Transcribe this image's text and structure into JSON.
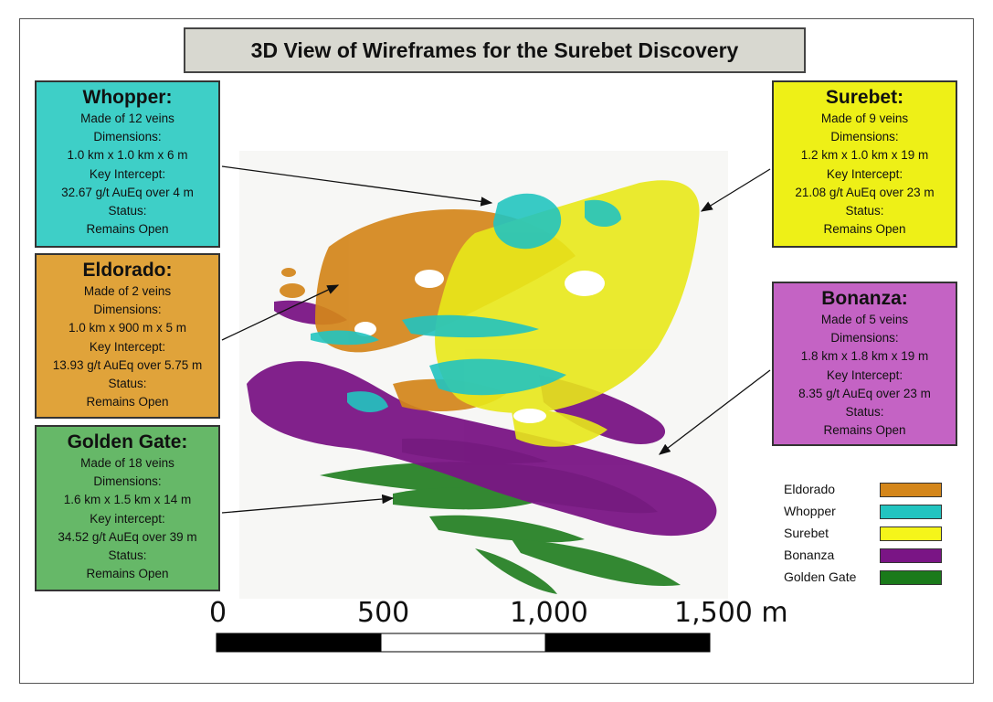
{
  "title": "3D View of Wireframes for the Surebet Discovery",
  "callouts": {
    "whopper": {
      "name": "Whopper:",
      "veins": "Made of 12 veins",
      "dim_label": "Dimensions:",
      "dimensions": "1.0 km x 1.0 km x 6 m",
      "key_label": "Key Intercept:",
      "key_intercept": "32.67 g/t AuEq over 4 m",
      "status_label": "Status:",
      "status": "Remains Open",
      "color": "#3ecfc7"
    },
    "eldorado": {
      "name": "Eldorado:",
      "veins": "Made of 2 veins",
      "dim_label": "Dimensions:",
      "dimensions": "1.0 km x 900 m x 5 m",
      "key_label": "Key Intercept:",
      "key_intercept": "13.93 g/t AuEq over 5.75 m",
      "status_label": "Status:",
      "status": "Remains Open",
      "color": "#e0a33a"
    },
    "golden_gate": {
      "name": "Golden Gate:",
      "veins": "Made of 18 veins",
      "dim_label": "Dimensions:",
      "dimensions": "1.6 km x 1.5 km x 14 m",
      "key_label": "Key intercept:",
      "key_intercept": "34.52 g/t AuEq over 39 m",
      "status_label": "Status:",
      "status": "Remains Open",
      "color": "#66b868"
    },
    "surebet": {
      "name": "Surebet:",
      "veins": "Made of 9 veins",
      "dim_label": "Dimensions:",
      "dimensions": "1.2 km x 1.0 km x 19 m",
      "key_label": "Key Intercept:",
      "key_intercept": "21.08 g/t AuEq over 23 m",
      "status_label": "Status:",
      "status": "Remains Open",
      "color": "#eef017"
    },
    "bonanza": {
      "name": "Bonanza:",
      "veins": "Made of 5 veins",
      "dim_label": "Dimensions:",
      "dimensions": "1.8 km x 1.8 km x 19 m",
      "key_label": "Key Intercept:",
      "key_intercept": "8.35 g/t AuEq over 23 m",
      "status_label": "Status:",
      "status": "Remains Open",
      "color": "#c463c4"
    }
  },
  "legend": [
    {
      "label": "Eldorado",
      "color": "#d4861a"
    },
    {
      "label": "Whopper",
      "color": "#22c4c0"
    },
    {
      "label": "Surebet",
      "color": "#f5f51a"
    },
    {
      "label": "Bonanza",
      "color": "#7a1585"
    },
    {
      "label": "Golden Gate",
      "color": "#1a7a1a"
    }
  ],
  "scale_bar": {
    "labels": [
      "0",
      "500",
      "1,000",
      "1,500 m"
    ]
  }
}
